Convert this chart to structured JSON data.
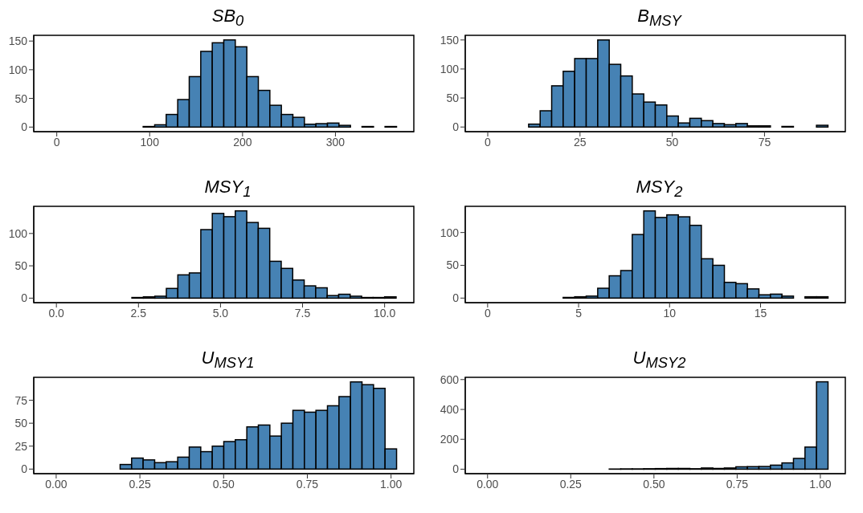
{
  "chart_data": [
    {
      "type": "histogram",
      "title": "SB$_{0}$",
      "color": "#4682b4",
      "bins": [
        -6.2,
        6.2,
        18.6,
        31,
        43.4,
        55.8,
        68.2,
        80.6,
        93,
        105.4,
        117.8,
        130.2,
        142.6,
        155,
        167.4,
        179.8,
        192.2,
        204.6,
        217,
        229.4,
        241.8,
        254.2,
        266.6,
        279,
        291.4,
        303.8,
        316.2,
        328.6,
        341,
        353.4,
        365.8
      ],
      "values": [
        0,
        0,
        0,
        0,
        0,
        0,
        0,
        0,
        1,
        4,
        22,
        48,
        88,
        132,
        147,
        152,
        140,
        88,
        64,
        38,
        22,
        17,
        5,
        6,
        7,
        3,
        0,
        1,
        0,
        1
      ],
      "xlim": [
        -24.8,
        384.4
      ],
      "xticks": [
        0,
        100,
        200,
        300
      ],
      "ylim": [
        -8,
        160
      ],
      "yticks": [
        0,
        50,
        100,
        150
      ],
      "grid": false
    },
    {
      "type": "histogram",
      "title": "B$_{MSY}$",
      "color": "#4682b4",
      "bins": [
        -1.4,
        1.72,
        4.84,
        7.96,
        11.08,
        14.2,
        17.32,
        20.44,
        23.56,
        26.68,
        29.8,
        32.92,
        36.04,
        39.16,
        42.28,
        45.4,
        48.52,
        51.64,
        54.76,
        57.88,
        61,
        64.12,
        67.24,
        70.36,
        73.48,
        76.6,
        79.72,
        82.84,
        85.96,
        89.08,
        92.2
      ],
      "values": [
        0,
        0,
        0,
        0,
        5,
        28,
        71,
        96,
        118,
        118,
        150,
        108,
        88,
        57,
        43,
        38,
        19,
        7,
        15,
        11,
        6,
        4,
        6,
        2,
        2,
        0,
        1,
        0,
        0,
        3
      ],
      "xlim": [
        -6.1,
        96.9
      ],
      "xticks": [
        0,
        25,
        50,
        75
      ],
      "ylim": [
        -8,
        158
      ],
      "yticks": [
        0,
        50,
        100,
        150
      ],
      "grid": false
    },
    {
      "type": "histogram",
      "title": "MSY$_{1}$",
      "color": "#4682b4",
      "bins": [
        -0.15,
        0.2,
        0.55,
        0.9,
        1.25,
        1.6,
        1.95,
        2.3,
        2.65,
        3,
        3.35,
        3.7,
        4.05,
        4.4,
        4.75,
        5.1,
        5.45,
        5.8,
        6.15,
        6.5,
        6.85,
        7.2,
        7.55,
        7.9,
        8.25,
        8.6,
        8.95,
        9.3,
        9.65,
        10,
        10.35
      ],
      "values": [
        0,
        0,
        0,
        0,
        0,
        0,
        0,
        1,
        2,
        3,
        15,
        36,
        39,
        106,
        131,
        126,
        135,
        117,
        108,
        57,
        46,
        28,
        19,
        16,
        4,
        6,
        3,
        1,
        1,
        2
      ],
      "xlim": [
        -0.69,
        10.89
      ],
      "xticks": [
        {
          "value": 0,
          "label": "0.0"
        },
        2.5,
        {
          "value": 5,
          "label": "5.0"
        },
        7.5,
        {
          "value": 10,
          "label": "10.0"
        }
      ],
      "ylim": [
        -7,
        142
      ],
      "yticks": [
        0,
        50,
        100
      ],
      "grid": false
    },
    {
      "type": "histogram",
      "title": "MSY$_{2}$",
      "color": "#4682b4",
      "bins": [
        -0.28,
        0.353,
        0.986,
        1.619,
        2.252,
        2.885,
        3.518,
        4.151,
        4.784,
        5.417,
        6.05,
        6.683,
        7.316,
        7.949,
        8.582,
        9.215,
        9.848,
        10.481,
        11.114,
        11.747,
        12.38,
        13.013,
        13.646,
        14.279,
        14.912,
        15.545,
        16.178,
        16.811,
        17.444,
        18.077,
        18.71
      ],
      "values": [
        0,
        0,
        0,
        0,
        0,
        0,
        0,
        1,
        2,
        3,
        15,
        34,
        42,
        97,
        133,
        123,
        127,
        124,
        111,
        60,
        50,
        24,
        22,
        14,
        5,
        6,
        3,
        0,
        2,
        2
      ],
      "xlim": [
        -1.23,
        19.66
      ],
      "xticks": [
        0,
        5,
        10,
        15
      ],
      "ylim": [
        -7,
        140
      ],
      "yticks": [
        0,
        50,
        100
      ],
      "grid": false
    },
    {
      "type": "histogram",
      "title": "U$_{MSY1}$",
      "color": "#4682b4",
      "bins": [
        -0.0155,
        0.0189,
        0.0533,
        0.0877,
        0.1221,
        0.1565,
        0.1909,
        0.2253,
        0.2597,
        0.2941,
        0.3285,
        0.3629,
        0.3973,
        0.4317,
        0.4661,
        0.5005,
        0.5349,
        0.5693,
        0.6037,
        0.6381,
        0.6725,
        0.7069,
        0.7413,
        0.7757,
        0.8101,
        0.8445,
        0.8789,
        0.9133,
        0.9477,
        0.9821,
        1.0165
      ],
      "values": [
        0,
        0,
        0,
        0,
        0,
        0,
        5,
        12,
        10,
        7,
        8,
        13,
        24,
        19,
        25,
        30,
        32,
        46,
        48,
        36,
        50,
        64,
        62,
        64,
        69,
        79,
        95,
        92,
        88,
        22
      ],
      "xlim": [
        -0.067,
        1.068
      ],
      "xticks": [
        {
          "value": 0,
          "label": "0.00"
        },
        0.25,
        {
          "value": 0.5,
          "label": "0.50"
        },
        0.75,
        {
          "value": 1,
          "label": "1.00"
        }
      ],
      "ylim": [
        -5,
        100
      ],
      "yticks": [
        0,
        25,
        50,
        75
      ],
      "grid": false
    },
    {
      "type": "histogram",
      "title": "U$_{MSY2}$",
      "color": "#4682b4",
      "bins": [
        -0.015,
        0.0196,
        0.0542,
        0.0888,
        0.1234,
        0.158,
        0.1926,
        0.2272,
        0.2618,
        0.2964,
        0.331,
        0.3656,
        0.4002,
        0.4348,
        0.4694,
        0.504,
        0.5386,
        0.5732,
        0.6078,
        0.6424,
        0.677,
        0.7116,
        0.7462,
        0.7808,
        0.8154,
        0.85,
        0.8846,
        0.9192,
        0.9538,
        0.9884,
        1.023
      ],
      "values": [
        0,
        0,
        0,
        0,
        0,
        0,
        0,
        0,
        0,
        0,
        0,
        1,
        2,
        2,
        3,
        4,
        5,
        5,
        3,
        8,
        5,
        8,
        16,
        17,
        18,
        27,
        42,
        72,
        148,
        585
      ],
      "xlim": [
        -0.067,
        1.075
      ],
      "xticks": [
        {
          "value": 0,
          "label": "0.00"
        },
        0.25,
        {
          "value": 0.5,
          "label": "0.50"
        },
        0.75,
        {
          "value": 1,
          "label": "1.00"
        }
      ],
      "ylim": [
        -30,
        615
      ],
      "yticks": [
        0,
        200,
        400,
        600
      ],
      "grid": false
    }
  ]
}
